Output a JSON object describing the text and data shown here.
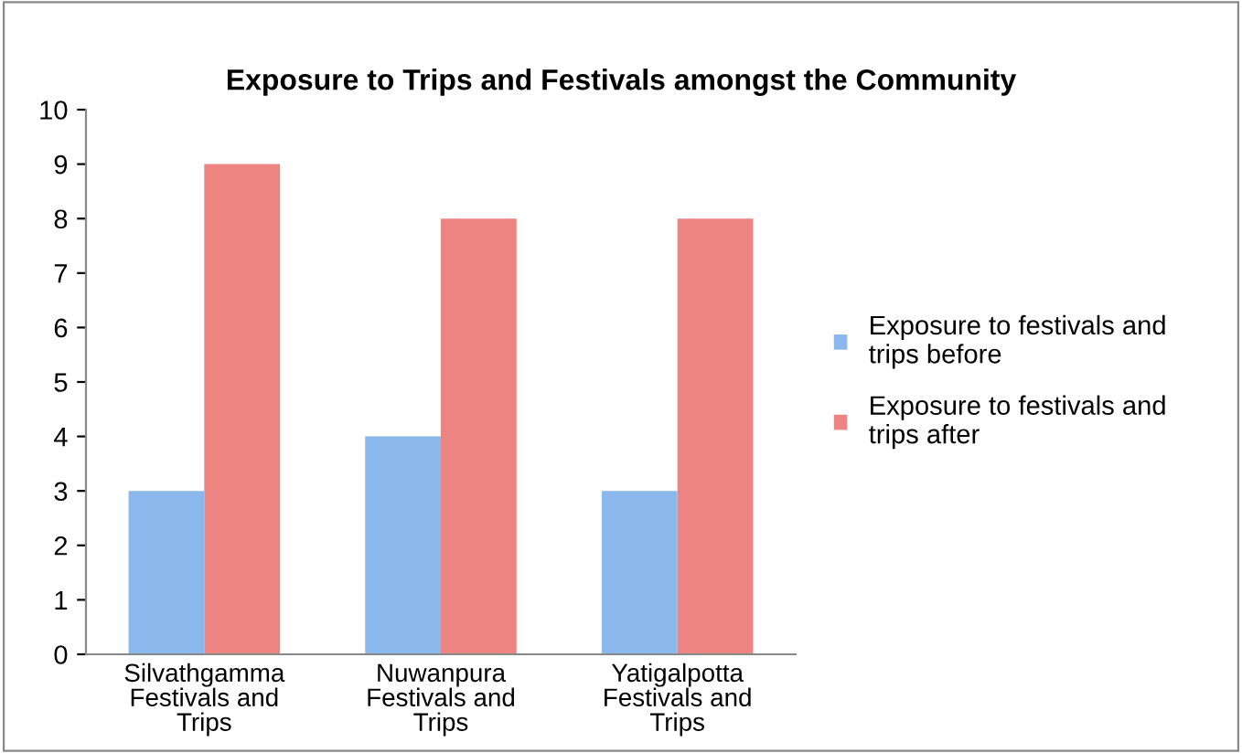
{
  "chart_data": {
    "type": "bar",
    "title": "Exposure to Trips and Festivals amongst the Community",
    "categories": [
      "Silvathgamma Festivals and Trips",
      "Nuwanpura Festivals and Trips",
      "Yatigalpotta Festivals and Trips"
    ],
    "series": [
      {
        "name": "Exposure to festivals and trips before",
        "color": "#8bb8ec",
        "values": [
          3,
          4,
          3
        ]
      },
      {
        "name": "Exposure to festivals and trips after",
        "color": "#ec8582",
        "values": [
          9,
          8,
          8
        ]
      }
    ],
    "ylim": [
      0,
      10
    ],
    "yticks": [
      0,
      1,
      2,
      3,
      4,
      5,
      6,
      7,
      8,
      9,
      10
    ],
    "grid": false,
    "legend": "right"
  }
}
